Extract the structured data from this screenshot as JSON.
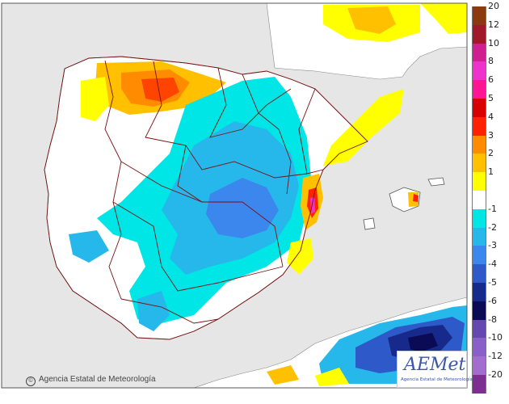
{
  "legend": {
    "ticks": [
      "20",
      "12",
      "10",
      "8",
      "6",
      "5",
      "4",
      "3",
      "2",
      "1",
      "",
      "-1",
      "-2",
      "-3",
      "-4",
      "-5",
      "-6",
      "-8",
      "-10",
      "-12",
      "-20"
    ],
    "colors": [
      "#8b3a0f",
      "#a0182a",
      "#cf2090",
      "#ee33cc",
      "#ff1493",
      "#d80000",
      "#ff2200",
      "#ff8c00",
      "#ffc000",
      "#ffff00",
      "#ffffff",
      "#00e5e5",
      "#26b8ea",
      "#3b87ee",
      "#2d5ac8",
      "#172a8c",
      "#0b0a55",
      "#6448b0",
      "#8a60c8",
      "#a36ccf",
      "#7d2e90"
    ]
  },
  "copyright": "Agencia Estatal de Meteorología",
  "logo": {
    "name": "AEMet",
    "tagline": "Agencia Estatal de Meteorología"
  },
  "colors": {
    "sea": "#e6e6e6",
    "land": "#ffffff",
    "borders": "#7a1010"
  }
}
